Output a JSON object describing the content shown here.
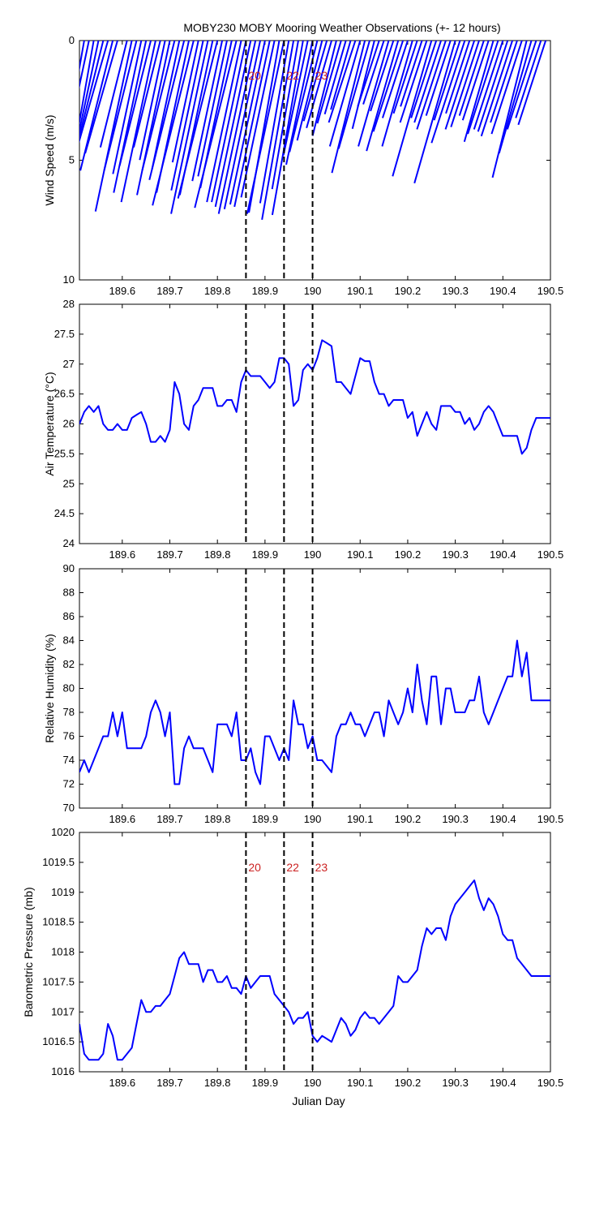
{
  "title": "MOBY230 MOBY Mooring Weather Observations (+- 12 hours)",
  "x_axis_label": "Julian Day",
  "x_ticks": [
    189.6,
    189.7,
    189.8,
    189.9,
    190,
    190.1,
    190.2,
    190.3,
    190.4,
    190.5
  ],
  "x_tick_labels": [
    "189.6",
    "189.7",
    "189.8",
    "189.9",
    "190",
    "190.1",
    "190.2",
    "190.3",
    "190.4",
    "190.5"
  ],
  "x_range": [
    189.51,
    190.5
  ],
  "colors": {
    "series": "#0000ff",
    "marker_label": "#cc2222",
    "axes": "#000000",
    "event_line": "#000000"
  },
  "event_markers": [
    {
      "label": "20",
      "x": 189.86
    },
    {
      "label": "22",
      "x": 189.94
    },
    {
      "label": "23",
      "x": 190.0
    }
  ],
  "chart_data": [
    {
      "type": "line",
      "subtype": "wind-vector-stick",
      "ylabel": "Wind Speed (m/s)",
      "ylim": [
        0,
        10
      ],
      "y_reversed": true,
      "y_ticks": [
        0,
        5,
        10
      ],
      "y_tick_labels": [
        "0",
        "5",
        "10"
      ],
      "show_event_labels": true,
      "x": [
        189.52,
        189.53,
        189.54,
        189.55,
        189.56,
        189.57,
        189.58,
        189.59,
        189.6,
        189.61,
        189.62,
        189.63,
        189.64,
        189.65,
        189.66,
        189.67,
        189.68,
        189.69,
        189.7,
        189.71,
        189.72,
        189.73,
        189.74,
        189.75,
        189.76,
        189.77,
        189.78,
        189.79,
        189.8,
        189.81,
        189.82,
        189.83,
        189.84,
        189.85,
        189.86,
        189.87,
        189.88,
        189.89,
        189.9,
        189.91,
        189.92,
        189.93,
        189.94,
        189.95,
        189.96,
        189.97,
        189.98,
        189.99,
        190.0,
        190.01,
        190.02,
        190.03,
        190.04,
        190.05,
        190.06,
        190.07,
        190.08,
        190.09,
        190.1,
        190.11,
        190.12,
        190.13,
        190.14,
        190.15,
        190.16,
        190.17,
        190.18,
        190.19,
        190.2,
        190.21,
        190.22,
        190.23,
        190.24,
        190.25,
        190.26,
        190.27,
        190.28,
        190.29,
        190.3,
        190.31,
        190.32,
        190.33,
        190.34,
        190.35,
        190.36,
        190.37,
        190.38,
        190.39,
        190.4,
        190.41,
        190.42,
        190.43,
        190.44,
        190.45,
        190.46,
        190.47,
        190.48,
        190.49
      ],
      "speed": [
        7.6,
        6.1,
        7.3,
        6.4,
        5.2,
        4.8,
        5.6,
        4.9,
        1.0,
        4.6,
        7.3,
        5.6,
        5.7,
        6.5,
        5.4,
        6.9,
        4.6,
        5.1,
        6.6,
        5.6,
        5.5,
        6.0,
        6.5,
        7.1,
        5.2,
        6.4,
        7.4,
        6.6,
        6.8,
        6.0,
        5.8,
        6.3,
        7.2,
        6.9,
        6.9,
        7.1,
        7.4,
        7.2,
        7.0,
        7.1,
        6.7,
        7.3,
        7.4,
        6.9,
        7.6,
        6.3,
        7.4,
        4.9,
        5.3,
        4.8,
        4.3,
        3.5,
        3.8,
        4.1,
        3.6,
        3.2,
        3.0,
        3.6,
        4.6,
        5.7,
        4.7,
        3.8,
        2.9,
        2.8,
        4.6,
        3.1,
        4.8,
        4.0,
        3.4,
        4.6,
        3.2,
        2.9,
        3.6,
        5.9,
        3.4,
        3.6,
        3.9,
        3.3,
        6.2,
        3.5,
        4.5,
        3.2,
        3.9,
        3.8,
        3.3,
        3.5,
        4.4,
        4.1,
        3.9,
        4.0,
        4.2,
        3.6,
        4.1,
        5.9,
        4.9,
        3.9,
        3.4,
        3.7
      ],
      "direction_deg": [
        10,
        12,
        10,
        12,
        14,
        16,
        14,
        16,
        180,
        14,
        12,
        14,
        12,
        12,
        14,
        12,
        14,
        12,
        12,
        14,
        12,
        14,
        12,
        14,
        12,
        12,
        12,
        12,
        14,
        12,
        12,
        12,
        14,
        12,
        12,
        12,
        12,
        12,
        12,
        12,
        12,
        10,
        12,
        10,
        10,
        10,
        10,
        12,
        12,
        14,
        14,
        16,
        16,
        14,
        16,
        16,
        16,
        18,
        16,
        14,
        16,
        14,
        18,
        18,
        16,
        18,
        16,
        18,
        18,
        16,
        18,
        18,
        18,
        16,
        18,
        18,
        18,
        18,
        16,
        18,
        18,
        18,
        18,
        18,
        18,
        18,
        16,
        18,
        18,
        18,
        18,
        18,
        18,
        14,
        16,
        18,
        18,
        18
      ]
    },
    {
      "type": "line",
      "ylabel": "Air Temperature (°C)",
      "ylim": [
        24,
        28
      ],
      "y_ticks": [
        24,
        24.5,
        25,
        25.5,
        26,
        26.5,
        27,
        27.5,
        28
      ],
      "y_tick_labels": [
        "24",
        "24.5",
        "25",
        "25.5",
        "26",
        "26.5",
        "27",
        "27.5",
        "28"
      ],
      "show_event_labels": false,
      "x": [
        189.51,
        189.52,
        189.53,
        189.54,
        189.55,
        189.56,
        189.57,
        189.58,
        189.59,
        189.6,
        189.61,
        189.62,
        189.63,
        189.64,
        189.65,
        189.66,
        189.67,
        189.68,
        189.69,
        189.7,
        189.71,
        189.72,
        189.73,
        189.74,
        189.75,
        189.76,
        189.77,
        189.78,
        189.79,
        189.8,
        189.81,
        189.82,
        189.83,
        189.84,
        189.85,
        189.86,
        189.87,
        189.88,
        189.89,
        189.9,
        189.91,
        189.92,
        189.93,
        189.94,
        189.95,
        189.96,
        189.97,
        189.98,
        189.99,
        190.0,
        190.01,
        190.02,
        190.03,
        190.04,
        190.05,
        190.06,
        190.07,
        190.08,
        190.09,
        190.1,
        190.11,
        190.12,
        190.13,
        190.14,
        190.15,
        190.16,
        190.17,
        190.18,
        190.19,
        190.2,
        190.21,
        190.22,
        190.23,
        190.24,
        190.25,
        190.26,
        190.27,
        190.28,
        190.29,
        190.3,
        190.31,
        190.32,
        190.33,
        190.34,
        190.35,
        190.36,
        190.37,
        190.38,
        190.39,
        190.4,
        190.41,
        190.42,
        190.43,
        190.44,
        190.45,
        190.46,
        190.47,
        190.48,
        190.49,
        190.5
      ],
      "values": [
        26.0,
        26.2,
        26.3,
        26.2,
        26.3,
        26.0,
        25.9,
        25.9,
        26.0,
        25.9,
        25.9,
        26.1,
        26.15,
        26.2,
        26.0,
        25.7,
        25.7,
        25.8,
        25.7,
        25.9,
        26.7,
        26.5,
        26.0,
        25.9,
        26.3,
        26.4,
        26.6,
        26.6,
        26.6,
        26.3,
        26.3,
        26.4,
        26.4,
        26.2,
        26.7,
        26.9,
        26.8,
        26.8,
        26.8,
        26.7,
        26.6,
        26.7,
        27.1,
        27.1,
        27.0,
        26.3,
        26.4,
        26.9,
        27.0,
        26.9,
        27.1,
        27.4,
        27.35,
        27.3,
        26.7,
        26.7,
        26.6,
        26.5,
        26.8,
        27.1,
        27.05,
        27.05,
        26.7,
        26.5,
        26.5,
        26.3,
        26.4,
        26.4,
        26.4,
        26.1,
        26.2,
        25.8,
        26.0,
        26.2,
        26.0,
        25.9,
        26.3,
        26.3,
        26.3,
        26.2,
        26.2,
        26.0,
        26.1,
        25.9,
        26.0,
        26.2,
        26.3,
        26.2,
        26.0,
        25.8,
        25.8,
        25.8,
        25.8,
        25.5,
        25.6,
        25.9,
        26.1,
        26.1,
        26.1,
        26.1
      ]
    },
    {
      "type": "line",
      "ylabel": "Relative Humidity (%)",
      "ylim": [
        70,
        90
      ],
      "y_ticks": [
        70,
        72,
        74,
        76,
        78,
        80,
        82,
        84,
        86,
        88,
        90
      ],
      "y_tick_labels": [
        "70",
        "72",
        "74",
        "76",
        "78",
        "80",
        "82",
        "84",
        "86",
        "88",
        "90"
      ],
      "show_event_labels": false,
      "x": [
        189.51,
        189.52,
        189.53,
        189.54,
        189.55,
        189.56,
        189.57,
        189.58,
        189.59,
        189.6,
        189.61,
        189.62,
        189.63,
        189.64,
        189.65,
        189.66,
        189.67,
        189.68,
        189.69,
        189.7,
        189.71,
        189.72,
        189.73,
        189.74,
        189.75,
        189.76,
        189.77,
        189.78,
        189.79,
        189.8,
        189.81,
        189.82,
        189.83,
        189.84,
        189.85,
        189.86,
        189.87,
        189.88,
        189.89,
        189.9,
        189.91,
        189.92,
        189.93,
        189.94,
        189.95,
        189.96,
        189.97,
        189.98,
        189.99,
        190.0,
        190.01,
        190.02,
        190.03,
        190.04,
        190.05,
        190.06,
        190.07,
        190.08,
        190.09,
        190.1,
        190.11,
        190.12,
        190.13,
        190.14,
        190.15,
        190.16,
        190.17,
        190.18,
        190.19,
        190.2,
        190.21,
        190.22,
        190.23,
        190.24,
        190.25,
        190.26,
        190.27,
        190.28,
        190.29,
        190.3,
        190.31,
        190.32,
        190.33,
        190.34,
        190.35,
        190.36,
        190.37,
        190.38,
        190.39,
        190.4,
        190.41,
        190.42,
        190.43,
        190.44,
        190.45,
        190.46,
        190.47,
        190.48,
        190.49,
        190.5
      ],
      "values": [
        73,
        74,
        73,
        74,
        75,
        76,
        76,
        78,
        76,
        78,
        75,
        75,
        75,
        75,
        76,
        78,
        79,
        78,
        76,
        78,
        72,
        72,
        75,
        76,
        75,
        75,
        75,
        74,
        73,
        77,
        77,
        77,
        76,
        78,
        74,
        74,
        75,
        73,
        72,
        76,
        76,
        75,
        74,
        75,
        74,
        79,
        77,
        77,
        75,
        76,
        74,
        74,
        73.5,
        73,
        76,
        77,
        77,
        78,
        77,
        77,
        76,
        77,
        78,
        78,
        76,
        79,
        78,
        77,
        78,
        80,
        78,
        82,
        79,
        77,
        81,
        81,
        77,
        80,
        80,
        78,
        78,
        78,
        79,
        79,
        81,
        78,
        77,
        78,
        79,
        80,
        81,
        81,
        84,
        81,
        83,
        79,
        79,
        79,
        79,
        79
      ]
    },
    {
      "type": "line",
      "ylabel": "Barometric Pressure (mb)",
      "xlabel": "Julian Day",
      "ylim": [
        1016,
        1020
      ],
      "y_ticks": [
        1016,
        1016.5,
        1017,
        1017.5,
        1018,
        1018.5,
        1019,
        1019.5,
        1020
      ],
      "y_tick_labels": [
        "1016",
        "1016.5",
        "1017",
        "1017.5",
        "1018",
        "1018.5",
        "1019",
        "1019.5",
        "1020"
      ],
      "show_event_labels": true,
      "x": [
        189.51,
        189.52,
        189.53,
        189.54,
        189.55,
        189.56,
        189.57,
        189.58,
        189.59,
        189.6,
        189.61,
        189.62,
        189.63,
        189.64,
        189.65,
        189.66,
        189.67,
        189.68,
        189.69,
        189.7,
        189.71,
        189.72,
        189.73,
        189.74,
        189.75,
        189.76,
        189.77,
        189.78,
        189.79,
        189.8,
        189.81,
        189.82,
        189.83,
        189.84,
        189.85,
        189.86,
        189.87,
        189.88,
        189.89,
        189.9,
        189.91,
        189.92,
        189.93,
        189.94,
        189.95,
        189.96,
        189.97,
        189.98,
        189.99,
        190.0,
        190.01,
        190.02,
        190.03,
        190.04,
        190.05,
        190.06,
        190.07,
        190.08,
        190.09,
        190.1,
        190.11,
        190.12,
        190.13,
        190.14,
        190.15,
        190.16,
        190.17,
        190.18,
        190.19,
        190.2,
        190.21,
        190.22,
        190.23,
        190.24,
        190.25,
        190.26,
        190.27,
        190.28,
        190.29,
        190.3,
        190.31,
        190.32,
        190.33,
        190.34,
        190.35,
        190.36,
        190.37,
        190.38,
        190.39,
        190.4,
        190.41,
        190.42,
        190.43,
        190.44,
        190.45,
        190.46,
        190.47,
        190.48,
        190.49,
        190.5
      ],
      "values": [
        1016.8,
        1016.3,
        1016.2,
        1016.2,
        1016.2,
        1016.3,
        1016.8,
        1016.6,
        1016.2,
        1016.2,
        1016.3,
        1016.4,
        1016.8,
        1017.2,
        1017.0,
        1017.0,
        1017.1,
        1017.1,
        1017.2,
        1017.3,
        1017.6,
        1017.9,
        1018.0,
        1017.8,
        1017.8,
        1017.8,
        1017.5,
        1017.7,
        1017.7,
        1017.5,
        1017.5,
        1017.6,
        1017.4,
        1017.4,
        1017.3,
        1017.6,
        1017.4,
        1017.5,
        1017.6,
        1017.6,
        1017.6,
        1017.3,
        1017.2,
        1017.1,
        1017.0,
        1016.8,
        1016.9,
        1016.9,
        1017.0,
        1016.6,
        1016.5,
        1016.6,
        1016.55,
        1016.5,
        1016.7,
        1016.9,
        1016.8,
        1016.6,
        1016.7,
        1016.9,
        1017.0,
        1016.9,
        1016.9,
        1016.8,
        1016.9,
        1017.0,
        1017.1,
        1017.6,
        1017.5,
        1017.5,
        1017.6,
        1017.7,
        1018.1,
        1018.4,
        1018.3,
        1018.4,
        1018.4,
        1018.2,
        1018.6,
        1018.8,
        1018.9,
        1019.0,
        1019.1,
        1019.2,
        1018.9,
        1018.7,
        1018.9,
        1018.8,
        1018.6,
        1018.3,
        1018.2,
        1018.2,
        1017.9,
        1017.8,
        1017.7,
        1017.6,
        1017.6,
        1017.6,
        1017.6,
        1017.6
      ]
    }
  ]
}
